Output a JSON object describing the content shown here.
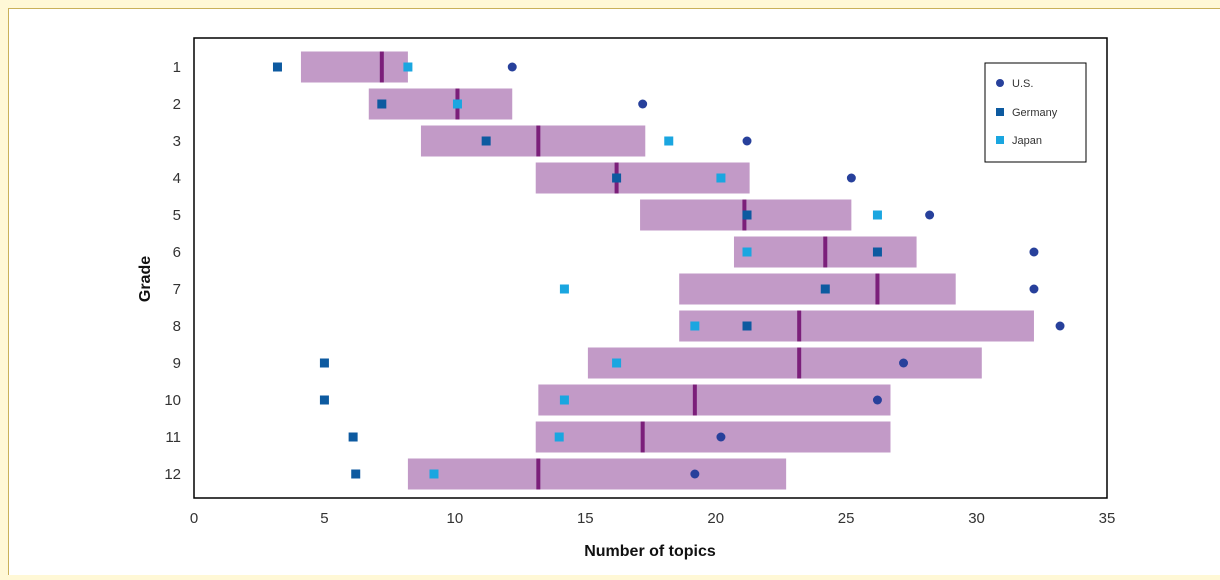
{
  "colors": {
    "range_bar": "#c29ac7",
    "median": "#7b1f7a",
    "us": "#27409b",
    "germany": "#0d5aa0",
    "japan": "#1aa6e0",
    "background": "#fff8d6"
  },
  "chart_data": {
    "type": "range",
    "title": "",
    "xlabel": "Number of topics",
    "ylabel": "Grade",
    "xlim": [
      0,
      35
    ],
    "xticks": [
      0,
      5,
      10,
      15,
      20,
      25,
      30,
      35
    ],
    "categories": [
      "1",
      "2",
      "3",
      "4",
      "5",
      "6",
      "7",
      "8",
      "9",
      "10",
      "11",
      "12"
    ],
    "legend_position": "top-right",
    "ranges": [
      {
        "grade": "1",
        "low": 4.1,
        "high": 8.2,
        "median": 7.2
      },
      {
        "grade": "2",
        "low": 6.7,
        "high": 12.2,
        "median": 10.1
      },
      {
        "grade": "3",
        "low": 8.7,
        "high": 17.3,
        "median": 13.2
      },
      {
        "grade": "4",
        "low": 13.1,
        "high": 21.3,
        "median": 16.2
      },
      {
        "grade": "5",
        "low": 17.1,
        "high": 25.2,
        "median": 21.1
      },
      {
        "grade": "6",
        "low": 20.7,
        "high": 27.7,
        "median": 24.2
      },
      {
        "grade": "7",
        "low": 18.6,
        "high": 29.2,
        "median": 26.2
      },
      {
        "grade": "8",
        "low": 18.6,
        "high": 32.2,
        "median": 23.2
      },
      {
        "grade": "9",
        "low": 15.1,
        "high": 30.2,
        "median": 23.2
      },
      {
        "grade": "10",
        "low": 13.2,
        "high": 26.7,
        "median": 19.2
      },
      {
        "grade": "11",
        "low": 13.1,
        "high": 26.7,
        "median": 17.2
      },
      {
        "grade": "12",
        "low": 8.2,
        "high": 22.7,
        "median": 13.2
      }
    ],
    "series": [
      {
        "name": "U.S.",
        "marker": "circle",
        "values": [
          12.2,
          17.2,
          21.2,
          25.2,
          28.2,
          32.2,
          32.2,
          33.2,
          27.2,
          26.2,
          20.2,
          19.2
        ]
      },
      {
        "name": "Germany",
        "marker": "square",
        "values": [
          3.2,
          7.2,
          11.2,
          16.2,
          21.2,
          26.2,
          24.2,
          21.2,
          5.0,
          5.0,
          6.1,
          6.2
        ]
      },
      {
        "name": "Japan",
        "marker": "square",
        "values": [
          8.2,
          10.1,
          18.2,
          20.2,
          26.2,
          21.2,
          14.2,
          19.2,
          16.2,
          14.2,
          14.0,
          9.2
        ]
      }
    ]
  }
}
